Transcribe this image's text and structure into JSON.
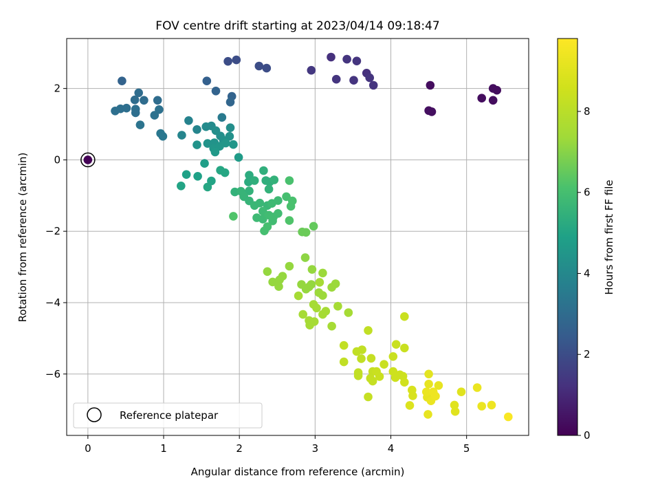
{
  "chart_data": {
    "type": "scatter",
    "title": "FOV centre drift starting at 2023/04/14 09:18:47",
    "xlabel": "Angular distance from reference (arcmin)",
    "ylabel": "Rotation from reference (arcmin)",
    "xlim": [
      -0.28,
      5.82
    ],
    "ylim": [
      -7.72,
      3.4
    ],
    "xticks": [
      0,
      1,
      2,
      3,
      4,
      5
    ],
    "xtick_labels": [
      "0",
      "1",
      "2",
      "3",
      "4",
      "5"
    ],
    "yticks": [
      2,
      0,
      -2,
      -4,
      -6
    ],
    "ytick_labels": [
      "2",
      "0",
      "−2",
      "−4",
      "−6"
    ],
    "grid": true,
    "legend": {
      "position": "lower-left",
      "entries": [
        "Reference platepar"
      ]
    },
    "colorbar": {
      "label": "Hours from first FF file",
      "colormap": "viridis",
      "range": [
        0,
        9.8
      ],
      "ticks": [
        0,
        2,
        4,
        6,
        8
      ],
      "tick_labels": [
        "0",
        "2",
        "4",
        "6",
        "8"
      ]
    },
    "reference_point": {
      "x": 0,
      "y": 0,
      "label": "Reference platepar"
    },
    "series": [
      {
        "points": [
          [
            0,
            0,
            0.05
          ],
          [
            4.52,
            2.09,
            0.3
          ],
          [
            4.5,
            1.38,
            0.35
          ],
          [
            4.54,
            1.35,
            0.35
          ],
          [
            5.2,
            1.73,
            0.3
          ],
          [
            5.35,
            1.67,
            0.3
          ],
          [
            5.35,
            2.0,
            0.3
          ],
          [
            5.4,
            1.95,
            0.3
          ],
          [
            3.21,
            2.88,
            1.2
          ],
          [
            3.42,
            2.82,
            1.3
          ],
          [
            3.55,
            2.77,
            1.3
          ],
          [
            3.68,
            2.43,
            1.2
          ],
          [
            3.72,
            2.3,
            1.3
          ],
          [
            3.77,
            2.09,
            1.3
          ],
          [
            3.51,
            2.23,
            1.3
          ],
          [
            3.28,
            2.26,
            1.3
          ],
          [
            2.95,
            2.51,
            1.4
          ],
          [
            2.26,
            2.63,
            2.0
          ],
          [
            2.36,
            2.57,
            2.0
          ],
          [
            1.85,
            2.76,
            2.0
          ],
          [
            1.96,
            2.8,
            2.0
          ],
          [
            0.45,
            2.21,
            2.7
          ],
          [
            1.57,
            2.21,
            2.6
          ],
          [
            1.69,
            1.93,
            2.7
          ],
          [
            1.9,
            1.78,
            2.7
          ],
          [
            1.88,
            1.62,
            2.8
          ],
          [
            0.67,
            1.88,
            3.0
          ],
          [
            0.62,
            1.68,
            3.0
          ],
          [
            0.74,
            1.67,
            3.0
          ],
          [
            0.92,
            1.67,
            3.0
          ],
          [
            0.36,
            1.37,
            3.1
          ],
          [
            0.43,
            1.43,
            3.1
          ],
          [
            0.51,
            1.45,
            3.1
          ],
          [
            0.63,
            1.42,
            3.1
          ],
          [
            0.63,
            1.32,
            3.1
          ],
          [
            0.94,
            1.41,
            3.2
          ],
          [
            0.88,
            1.25,
            3.2
          ],
          [
            0.69,
            0.98,
            3.3
          ],
          [
            0.96,
            0.74,
            3.4
          ],
          [
            0.99,
            0.66,
            3.4
          ],
          [
            1.77,
            1.19,
            3.5
          ],
          [
            1.33,
            1.1,
            3.8
          ],
          [
            1.44,
            0.85,
            3.9
          ],
          [
            1.24,
            0.69,
            3.9
          ],
          [
            1.56,
            0.93,
            4.1
          ],
          [
            1.63,
            0.95,
            4.1
          ],
          [
            1.69,
            0.82,
            4.2
          ],
          [
            1.75,
            0.67,
            4.2
          ],
          [
            1.88,
            0.9,
            4.2
          ],
          [
            1.87,
            0.66,
            4.3
          ],
          [
            1.79,
            0.55,
            4.3
          ],
          [
            1.67,
            0.48,
            4.4
          ],
          [
            1.58,
            0.46,
            4.4
          ],
          [
            1.44,
            0.42,
            4.4
          ],
          [
            1.66,
            0.32,
            4.5
          ],
          [
            1.74,
            0.38,
            4.5
          ],
          [
            1.82,
            0.47,
            4.5
          ],
          [
            1.92,
            0.43,
            4.5
          ],
          [
            1.68,
            0.22,
            4.6
          ],
          [
            1.99,
            0.07,
            4.7
          ],
          [
            1.54,
            -0.1,
            4.8
          ],
          [
            1.3,
            -0.41,
            4.9
          ],
          [
            1.45,
            -0.46,
            4.9
          ],
          [
            1.23,
            -0.73,
            5.0
          ],
          [
            1.63,
            -0.59,
            5.0
          ],
          [
            1.58,
            -0.76,
            5.1
          ],
          [
            1.75,
            -0.29,
            5.1
          ],
          [
            1.81,
            -0.36,
            5.1
          ],
          [
            2.13,
            -0.43,
            5.3
          ],
          [
            2.12,
            -0.62,
            5.3
          ],
          [
            2.2,
            -0.58,
            5.4
          ],
          [
            2.32,
            -0.3,
            5.4
          ],
          [
            2.35,
            -0.58,
            5.4
          ],
          [
            2.4,
            -0.62,
            5.4
          ],
          [
            2.46,
            -0.56,
            5.5
          ],
          [
            2.39,
            -0.82,
            5.5
          ],
          [
            2.13,
            -0.87,
            5.5
          ],
          [
            1.94,
            -0.9,
            5.5
          ],
          [
            2.02,
            -0.88,
            5.6
          ],
          [
            2.06,
            -1.03,
            5.6
          ],
          [
            2.13,
            -1.15,
            5.6
          ],
          [
            2.2,
            -1.28,
            5.7
          ],
          [
            2.27,
            -1.21,
            5.7
          ],
          [
            2.37,
            -1.28,
            5.7
          ],
          [
            2.43,
            -1.22,
            5.8
          ],
          [
            2.51,
            -1.14,
            5.8
          ],
          [
            2.31,
            -1.44,
            5.8
          ],
          [
            2.23,
            -1.62,
            5.8
          ],
          [
            2.31,
            -1.66,
            5.8
          ],
          [
            2.39,
            -1.55,
            5.9
          ],
          [
            2.45,
            -1.6,
            5.9
          ],
          [
            2.51,
            -1.5,
            5.9
          ],
          [
            2.44,
            -1.71,
            5.9
          ],
          [
            2.37,
            -1.87,
            6.0
          ],
          [
            2.33,
            -1.99,
            6.0
          ],
          [
            2.62,
            -1.03,
            6.0
          ],
          [
            2.66,
            -0.58,
            6.1
          ],
          [
            2.7,
            -1.15,
            6.1
          ],
          [
            2.68,
            -1.3,
            6.1
          ],
          [
            2.66,
            -1.7,
            6.2
          ],
          [
            1.92,
            -1.58,
            6.2
          ],
          [
            2.98,
            -1.86,
            6.5
          ],
          [
            2.83,
            -2.02,
            6.6
          ],
          [
            2.88,
            -2.03,
            6.6
          ],
          [
            2.87,
            -2.74,
            7.1
          ],
          [
            2.37,
            -3.13,
            7.2
          ],
          [
            2.44,
            -3.42,
            7.2
          ],
          [
            2.53,
            -3.36,
            7.2
          ],
          [
            2.57,
            -3.26,
            7.2
          ],
          [
            2.52,
            -3.55,
            7.2
          ],
          [
            2.66,
            -2.98,
            7.2
          ],
          [
            2.82,
            -3.49,
            7.2
          ],
          [
            2.88,
            -3.62,
            7.2
          ],
          [
            2.92,
            -3.56,
            7.2
          ],
          [
            2.95,
            -3.49,
            7.2
          ],
          [
            2.96,
            -3.07,
            7.2
          ],
          [
            3.1,
            -3.17,
            7.3
          ],
          [
            3.05,
            -3.72,
            7.3
          ],
          [
            3.1,
            -3.8,
            7.3
          ],
          [
            3.22,
            -3.57,
            7.3
          ],
          [
            3.27,
            -3.47,
            7.3
          ],
          [
            3.22,
            -4.66,
            7.5
          ],
          [
            2.98,
            -4.05,
            7.5
          ],
          [
            3.02,
            -4.15,
            7.5
          ],
          [
            2.84,
            -4.33,
            7.5
          ],
          [
            2.92,
            -4.5,
            7.5
          ],
          [
            2.93,
            -4.63,
            7.5
          ],
          [
            2.99,
            -4.53,
            7.5
          ],
          [
            3.06,
            -3.43,
            7.5
          ],
          [
            3.1,
            -4.33,
            7.5
          ],
          [
            3.14,
            -4.24,
            7.5
          ],
          [
            3.3,
            -4.1,
            7.5
          ],
          [
            3.44,
            -4.28,
            7.5
          ],
          [
            2.78,
            -3.81,
            7.5
          ],
          [
            3.38,
            -5.2,
            8.2
          ],
          [
            3.38,
            -5.66,
            8.2
          ],
          [
            3.55,
            -5.37,
            8.2
          ],
          [
            3.57,
            -5.96,
            8.2
          ],
          [
            3.57,
            -6.05,
            8.2
          ],
          [
            3.62,
            -5.32,
            8.2
          ],
          [
            3.61,
            -5.57,
            8.2
          ],
          [
            3.7,
            -4.78,
            8.2
          ],
          [
            3.74,
            -5.56,
            8.3
          ],
          [
            3.7,
            -6.64,
            8.3
          ],
          [
            3.76,
            -5.93,
            8.3
          ],
          [
            3.73,
            -6.12,
            8.3
          ],
          [
            3.76,
            -6.2,
            8.3
          ],
          [
            3.81,
            -5.93,
            8.4
          ],
          [
            3.85,
            -6.07,
            8.4
          ],
          [
            3.91,
            -5.73,
            8.4
          ],
          [
            4.03,
            -5.51,
            8.4
          ],
          [
            4.07,
            -5.17,
            8.4
          ],
          [
            4.18,
            -5.27,
            8.4
          ],
          [
            4.18,
            -4.39,
            8.4
          ],
          [
            4.03,
            -5.93,
            8.5
          ],
          [
            4.06,
            -6.1,
            8.5
          ],
          [
            4.12,
            -6.02,
            8.5
          ],
          [
            4.16,
            -6.06,
            8.5
          ],
          [
            4.18,
            -6.23,
            8.6
          ],
          [
            4.28,
            -6.45,
            8.8
          ],
          [
            4.29,
            -6.61,
            8.8
          ],
          [
            4.25,
            -6.88,
            8.9
          ],
          [
            4.48,
            -6.65,
            9.2
          ],
          [
            4.5,
            -6.0,
            9.1
          ],
          [
            4.5,
            -6.28,
            9.2
          ],
          [
            4.47,
            -6.5,
            9.3
          ],
          [
            4.53,
            -6.75,
            9.3
          ],
          [
            4.56,
            -6.5,
            9.4
          ],
          [
            4.59,
            -6.62,
            9.4
          ],
          [
            4.63,
            -6.32,
            9.2
          ],
          [
            4.49,
            -7.13,
            9.2
          ],
          [
            4.84,
            -6.87,
            9.0
          ],
          [
            4.85,
            -7.05,
            9.0
          ],
          [
            4.93,
            -6.5,
            9.0
          ],
          [
            5.14,
            -6.38,
            9.3
          ],
          [
            5.2,
            -6.9,
            9.3
          ],
          [
            5.33,
            -6.87,
            9.4
          ],
          [
            5.55,
            -7.2,
            9.7
          ]
        ]
      }
    ]
  }
}
